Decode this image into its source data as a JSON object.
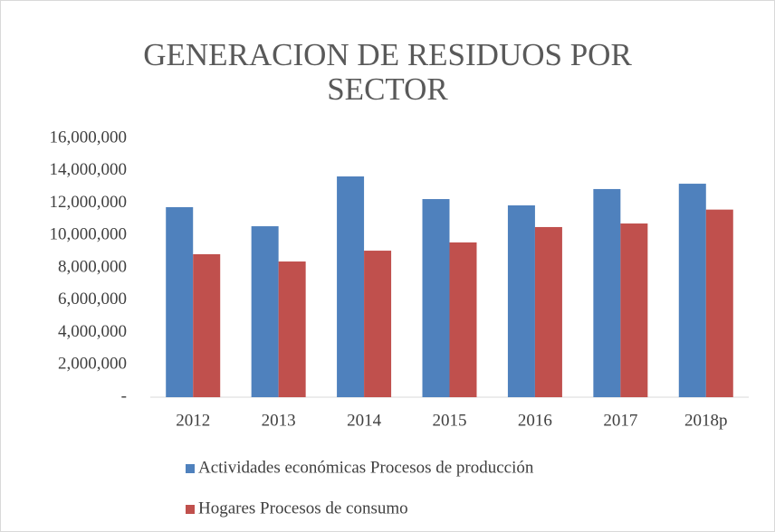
{
  "chart_data": {
    "type": "bar",
    "title": "GENERACION DE RESIDUOS POR SECTOR",
    "categories": [
      "2012",
      "2013",
      "2014",
      "2015",
      "2016",
      "2017",
      "2018p"
    ],
    "series": [
      {
        "name": "Actividades económicas Procesos de producción",
        "color": "#4f81bd",
        "values": [
          11750000,
          10570000,
          13650000,
          12250000,
          11860000,
          12870000,
          13200000
        ]
      },
      {
        "name": "Hogares Procesos de consumo",
        "color": "#c0504d",
        "values": [
          8840000,
          8390000,
          9060000,
          9570000,
          10520000,
          10740000,
          11600000
        ]
      }
    ],
    "ylim": [
      0,
      16000000
    ],
    "yticks": [
      {
        "value": 0,
        "label": "-"
      },
      {
        "value": 2000000,
        "label": "2,000,000"
      },
      {
        "value": 4000000,
        "label": "4,000,000"
      },
      {
        "value": 6000000,
        "label": "6,000,000"
      },
      {
        "value": 8000000,
        "label": "8,000,000"
      },
      {
        "value": 10000000,
        "label": "10,000,000"
      },
      {
        "value": 12000000,
        "label": "12,000,000"
      },
      {
        "value": 14000000,
        "label": "14,000,000"
      },
      {
        "value": 16000000,
        "label": "16,000,000"
      }
    ],
    "grid": false,
    "legend": "bottom"
  }
}
